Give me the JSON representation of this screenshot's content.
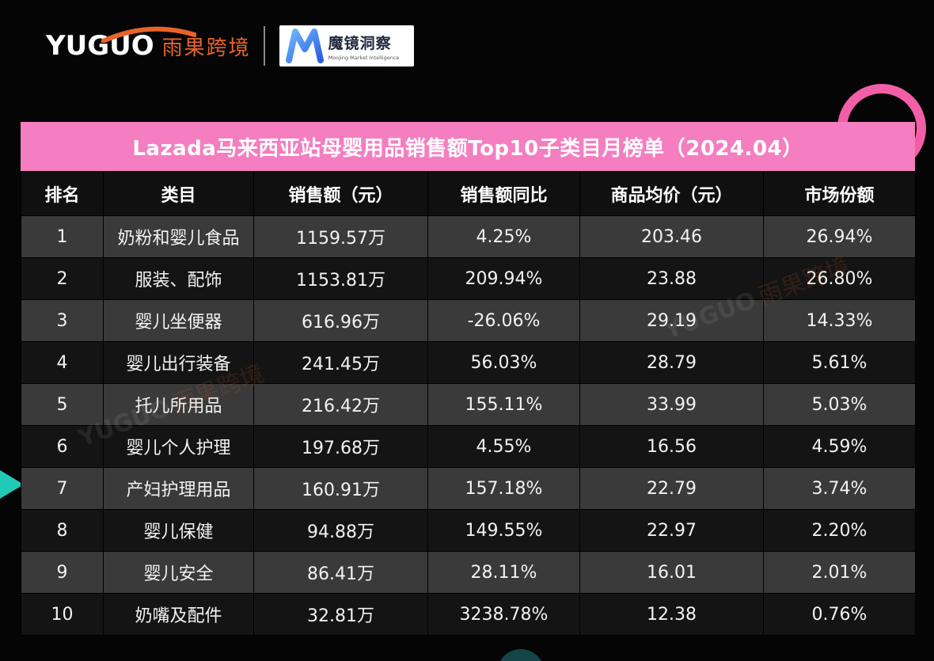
{
  "brand": {
    "yuguo_en": "YUGUO",
    "yuguo_cn": "雨果跨境",
    "moojing_cn": "魔镜洞察",
    "moojing_en": "Moojing Market Intelligence",
    "colors": {
      "yuguo_orange": "#e8632a",
      "moojing_blue": "#2b7bf3",
      "accent_pink": "#f47ec0",
      "accent_teal": "#21c9b7"
    }
  },
  "title": "Lazada马来西亚站母婴用品销售额Top10子类目月榜单（2024.04）",
  "table": {
    "headers": [
      "排名",
      "类目",
      "销售额（元）",
      "销售额同比",
      "商品均价（元）",
      "市场份额"
    ],
    "rows": [
      [
        "1",
        "奶粉和婴儿食品",
        "1159.57万",
        "4.25%",
        "203.46",
        "26.94%"
      ],
      [
        "2",
        "服装、配饰",
        "1153.81万",
        "209.94%",
        "23.88",
        "26.80%"
      ],
      [
        "3",
        "婴儿坐便器",
        "616.96万",
        "-26.06%",
        "29.19",
        "14.33%"
      ],
      [
        "4",
        "婴儿出行装备",
        "241.45万",
        "56.03%",
        "28.79",
        "5.61%"
      ],
      [
        "5",
        "托儿所用品",
        "216.42万",
        "155.11%",
        "33.99",
        "5.03%"
      ],
      [
        "6",
        "婴儿个人护理",
        "197.68万",
        "4.55%",
        "16.56",
        "4.59%"
      ],
      [
        "7",
        "产妇护理用品",
        "160.91万",
        "157.18%",
        "22.79",
        "3.74%"
      ],
      [
        "8",
        "婴儿保健",
        "94.88万",
        "149.55%",
        "22.97",
        "2.20%"
      ],
      [
        "9",
        "婴儿安全",
        "86.41万",
        "28.11%",
        "16.01",
        "2.01%"
      ],
      [
        "10",
        "奶嘴及配件",
        "32.81万",
        "3238.78%",
        "12.38",
        "0.76%"
      ]
    ]
  },
  "watermark": {
    "en": "YUGUO",
    "cn": "雨果跨境"
  }
}
